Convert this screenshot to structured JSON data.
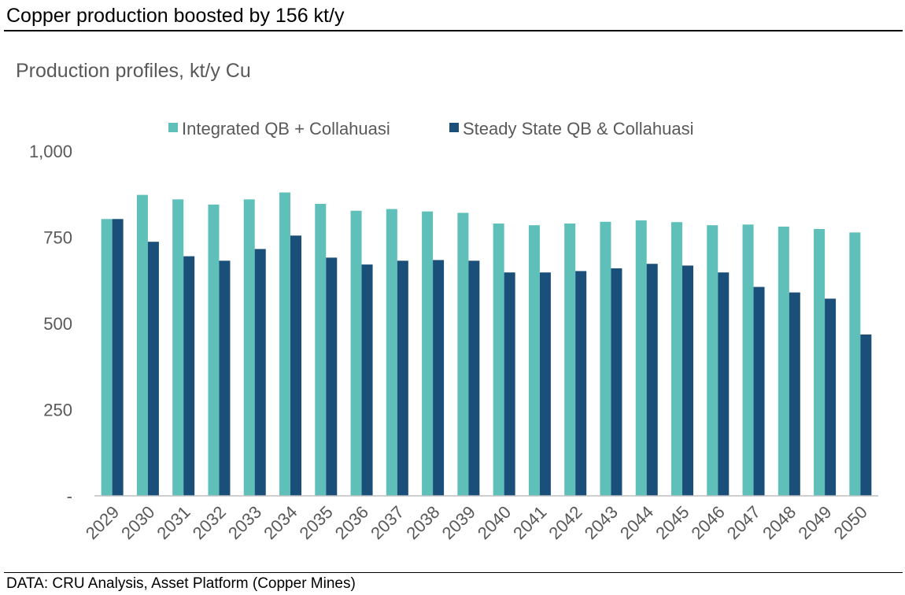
{
  "header": {
    "title": "Copper production boosted by 156 kt/y"
  },
  "footer": {
    "source": "DATA: CRU Analysis, Asset Platform (Copper Mines)"
  },
  "colors": {
    "series1": "#5fbfb9",
    "series2": "#1a4f7a",
    "text": "#595959",
    "axis": "#bfbfbf"
  },
  "chart_data": {
    "type": "bar",
    "title": "Production profiles, kt/y Cu",
    "xlabel": "",
    "ylabel": "",
    "ylim": [
      0,
      1000
    ],
    "yticks": [
      0,
      250,
      500,
      750,
      1000
    ],
    "ytick_labels": [
      "-",
      "250",
      "500",
      "750",
      "1,000"
    ],
    "legend_position": "top",
    "grid": false,
    "categories": [
      "2029",
      "2030",
      "2031",
      "2032",
      "2033",
      "2034",
      "2035",
      "2036",
      "2037",
      "2038",
      "2039",
      "2040",
      "2041",
      "2042",
      "2043",
      "2044",
      "2045",
      "2046",
      "2047",
      "2048",
      "2049",
      "2050"
    ],
    "series": [
      {
        "name": "Integrated QB + Collahuasi",
        "values": [
          803,
          873,
          860,
          845,
          860,
          880,
          847,
          827,
          832,
          825,
          821,
          790,
          785,
          790,
          795,
          799,
          794,
          785,
          787,
          781,
          774,
          764
        ]
      },
      {
        "name": "Steady State QB & Collahuasi",
        "values": [
          803,
          737,
          695,
          682,
          716,
          755,
          691,
          671,
          682,
          684,
          682,
          648,
          648,
          652,
          660,
          673,
          668,
          648,
          606,
          590,
          572,
          468
        ]
      }
    ]
  }
}
